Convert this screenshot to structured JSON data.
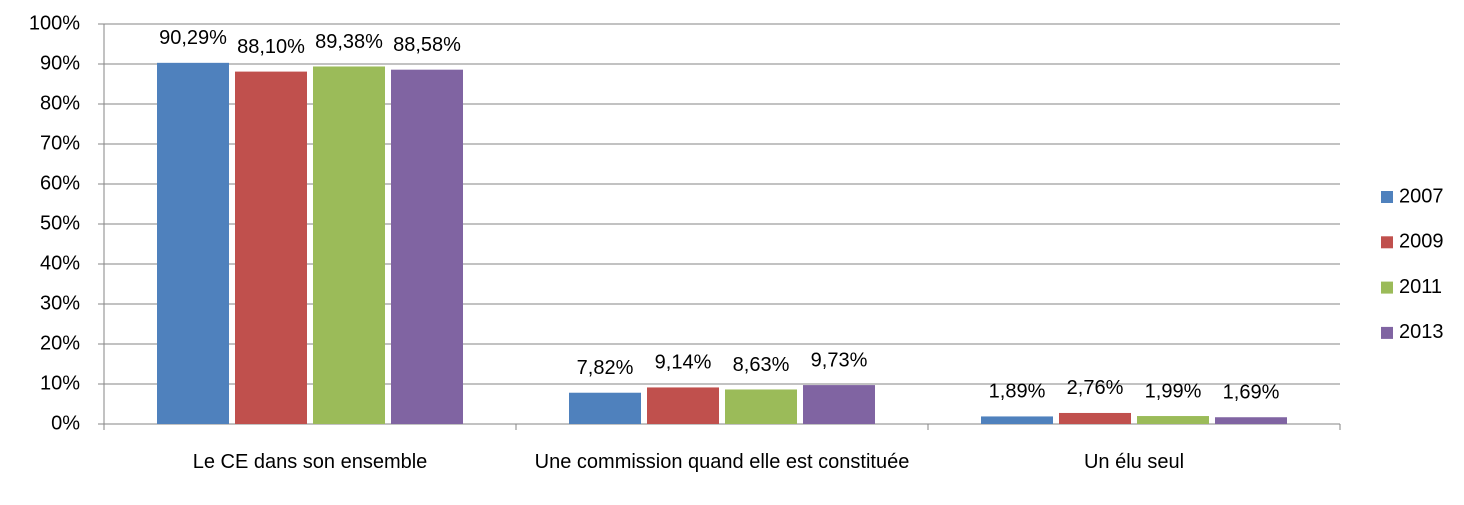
{
  "chart_data": {
    "type": "bar",
    "categories": [
      "Le CE dans son ensemble",
      "Une commission quand elle est constituée",
      "Un élu seul"
    ],
    "series": [
      {
        "name": "2007",
        "color": "#4f81bd",
        "values": [
          90.29,
          7.82,
          1.89
        ],
        "value_labels": [
          "90,29%",
          "7,82%",
          "1,89%"
        ]
      },
      {
        "name": "2009",
        "color": "#c0504d",
        "values": [
          88.1,
          9.14,
          2.76
        ],
        "value_labels": [
          "88,10%",
          "9,14%",
          "2,76%"
        ]
      },
      {
        "name": "2011",
        "color": "#9bbb59",
        "values": [
          89.38,
          8.63,
          1.99
        ],
        "value_labels": [
          "89,38%",
          "8,63%",
          "1,99%"
        ]
      },
      {
        "name": "2013",
        "color": "#8064a2",
        "values": [
          88.58,
          9.73,
          1.69
        ],
        "value_labels": [
          "88,58%",
          "9,73%",
          "1,69%"
        ]
      }
    ],
    "ylim": [
      0,
      100
    ],
    "yticks": [
      {
        "value": 0,
        "label": "0%"
      },
      {
        "value": 10,
        "label": "10%"
      },
      {
        "value": 20,
        "label": "20%"
      },
      {
        "value": 30,
        "label": "30%"
      },
      {
        "value": 40,
        "label": "40%"
      },
      {
        "value": 50,
        "label": "50%"
      },
      {
        "value": 60,
        "label": "60%"
      },
      {
        "value": 70,
        "label": "70%"
      },
      {
        "value": 80,
        "label": "80%"
      },
      {
        "value": 90,
        "label": "90%"
      },
      {
        "value": 100,
        "label": "100%"
      }
    ],
    "grid": true,
    "legend": "right"
  }
}
